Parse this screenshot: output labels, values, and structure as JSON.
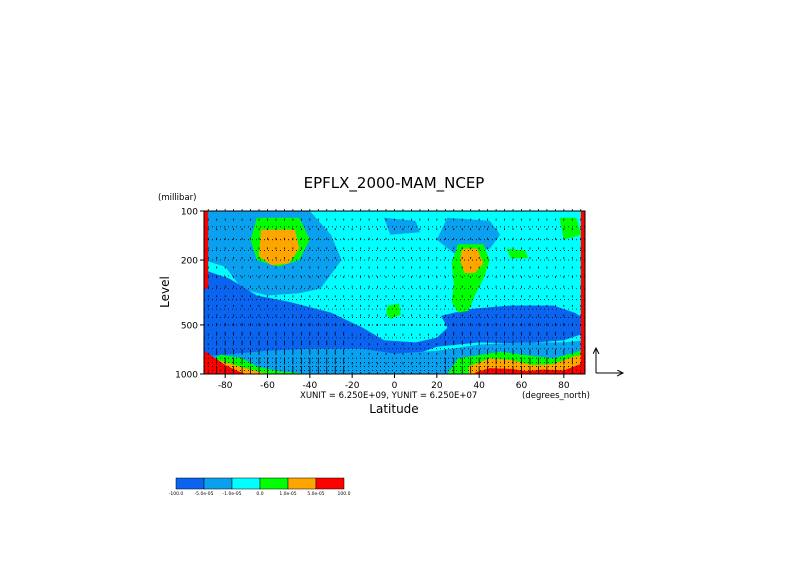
{
  "chart_data": {
    "type": "heatmap",
    "title": "EPFLX_2000-MAM_NCEP",
    "ylabel": "Level",
    "yunit_label": "(millibar)",
    "xlabel": "Latitude",
    "xunit_label": "(degrees_north)",
    "vector_scale_text": "XUNIT = 6.250E+09, YUNIT = 6.250E+07",
    "x_ticks": [
      -80,
      -60,
      -40,
      -20,
      0,
      20,
      40,
      60,
      80
    ],
    "y_ticks": [
      100,
      200,
      500,
      1000
    ],
    "xlim": [
      -90,
      90
    ],
    "ylim": [
      1000,
      100
    ],
    "y_scale": "log",
    "grid": true,
    "colorbar": {
      "labels": [
        "-100.0",
        "-5.0e-05",
        "-1.0e-05",
        "0.0",
        "1.0e-05",
        "5.0e-05",
        "100.0"
      ],
      "colors": [
        "#0a64f0",
        "#0aa0f0",
        "#00ffff",
        "#00ff00",
        "#ffa500",
        "#ff0000"
      ]
    },
    "colors": {
      "deep_blue": "#0a64f0",
      "mid_blue": "#0aa0f0",
      "cyan": "#00ffff",
      "green": "#00ff00",
      "orange": "#ffa500",
      "red": "#ff0000",
      "background": "#00ffff"
    },
    "regions": [
      {
        "level": "mid_blue",
        "points": [
          [
            -90,
            100
          ],
          [
            -40,
            100
          ],
          [
            -30,
            140
          ],
          [
            -25,
            200
          ],
          [
            -35,
            300
          ],
          [
            -45,
            320
          ],
          [
            -60,
            330
          ],
          [
            -72,
            300
          ],
          [
            -80,
            220
          ],
          [
            -90,
            200
          ]
        ]
      },
      {
        "level": "deep_blue",
        "points": [
          [
            -90,
            230
          ],
          [
            -78,
            260
          ],
          [
            -65,
            330
          ],
          [
            -50,
            360
          ],
          [
            -30,
            420
          ],
          [
            -15,
            520
          ],
          [
            -5,
            620
          ],
          [
            10,
            640
          ],
          [
            20,
            600
          ],
          [
            25,
            520
          ],
          [
            22,
            440
          ],
          [
            35,
            400
          ],
          [
            55,
            380
          ],
          [
            75,
            380
          ],
          [
            85,
            420
          ],
          [
            90,
            460
          ],
          [
            90,
            560
          ],
          [
            80,
            620
          ],
          [
            60,
            650
          ],
          [
            40,
            640
          ],
          [
            20,
            680
          ],
          [
            5,
            800
          ],
          [
            -10,
            860
          ],
          [
            -30,
            880
          ],
          [
            -55,
            900
          ],
          [
            -75,
            880
          ],
          [
            -85,
            820
          ],
          [
            -90,
            780
          ]
        ]
      },
      {
        "level": "mid_blue",
        "points": [
          [
            -90,
            780
          ],
          [
            -80,
            760
          ],
          [
            -60,
            720
          ],
          [
            -40,
            700
          ],
          [
            -15,
            700
          ],
          [
            0,
            750
          ],
          [
            20,
            720
          ],
          [
            40,
            660
          ],
          [
            60,
            640
          ],
          [
            80,
            640
          ],
          [
            90,
            620
          ],
          [
            90,
            1000
          ],
          [
            -90,
            1000
          ]
        ]
      },
      {
        "level": "mid_blue",
        "points": [
          [
            -85,
            100
          ],
          [
            -75,
            130
          ],
          [
            -70,
            160
          ],
          [
            -80,
            180
          ],
          [
            -90,
            170
          ]
        ]
      },
      {
        "level": "mid_blue",
        "points": [
          [
            25,
            110
          ],
          [
            45,
            115
          ],
          [
            50,
            140
          ],
          [
            45,
            170
          ],
          [
            30,
            190
          ],
          [
            20,
            150
          ]
        ]
      },
      {
        "level": "mid_blue",
        "points": [
          [
            -5,
            110
          ],
          [
            10,
            115
          ],
          [
            12,
            135
          ],
          [
            -2,
            140
          ]
        ]
      },
      {
        "level": "green",
        "points": [
          [
            -65,
            110
          ],
          [
            -45,
            110
          ],
          [
            -40,
            150
          ],
          [
            -45,
            200
          ],
          [
            -55,
            220
          ],
          [
            -65,
            200
          ],
          [
            -68,
            150
          ]
        ]
      },
      {
        "level": "green",
        "points": [
          [
            30,
            160
          ],
          [
            42,
            160
          ],
          [
            45,
            200
          ],
          [
            42,
            260
          ],
          [
            38,
            330
          ],
          [
            35,
            410
          ],
          [
            30,
            420
          ],
          [
            27,
            360
          ],
          [
            28,
            280
          ],
          [
            27,
            210
          ]
        ]
      },
      {
        "level": "green",
        "points": [
          [
            -3,
            380
          ],
          [
            2,
            370
          ],
          [
            3,
            430
          ],
          [
            -2,
            460
          ],
          [
            -4,
            420
          ]
        ]
      },
      {
        "level": "green",
        "points": [
          [
            53,
            170
          ],
          [
            62,
            175
          ],
          [
            63,
            195
          ],
          [
            55,
            195
          ]
        ]
      },
      {
        "level": "green",
        "points": [
          [
            78,
            110
          ],
          [
            86,
            110
          ],
          [
            88,
            140
          ],
          [
            80,
            150
          ]
        ]
      },
      {
        "level": "orange",
        "points": [
          [
            -63,
            130
          ],
          [
            -47,
            130
          ],
          [
            -45,
            170
          ],
          [
            -50,
            210
          ],
          [
            -58,
            215
          ],
          [
            -64,
            190
          ]
        ]
      },
      {
        "level": "orange",
        "points": [
          [
            32,
            170
          ],
          [
            39,
            170
          ],
          [
            42,
            210
          ],
          [
            38,
            240
          ],
          [
            33,
            240
          ],
          [
            31,
            200
          ]
        ]
      },
      {
        "level": "green",
        "points": [
          [
            -82,
            760
          ],
          [
            -72,
            800
          ],
          [
            -65,
            900
          ],
          [
            -55,
            960
          ],
          [
            -40,
            1000
          ],
          [
            -90,
            1000
          ],
          [
            -90,
            880
          ]
        ]
      },
      {
        "level": "orange",
        "points": [
          [
            -87,
            800
          ],
          [
            -78,
            860
          ],
          [
            -68,
            940
          ],
          [
            -60,
            1000
          ],
          [
            -90,
            1000
          ]
        ]
      },
      {
        "level": "red",
        "points": [
          [
            -90,
            720
          ],
          [
            -86,
            780
          ],
          [
            -80,
            880
          ],
          [
            -74,
            960
          ],
          [
            -70,
            1000
          ],
          [
            -90,
            1000
          ]
        ]
      },
      {
        "level": "green",
        "points": [
          [
            30,
            800
          ],
          [
            50,
            730
          ],
          [
            60,
            760
          ],
          [
            75,
            800
          ],
          [
            85,
            740
          ],
          [
            90,
            700
          ],
          [
            90,
            1000
          ],
          [
            25,
            1000
          ]
        ]
      },
      {
        "level": "orange",
        "points": [
          [
            35,
            900
          ],
          [
            45,
            800
          ],
          [
            55,
            820
          ],
          [
            65,
            880
          ],
          [
            75,
            870
          ],
          [
            85,
            780
          ],
          [
            90,
            760
          ],
          [
            90,
            1000
          ],
          [
            35,
            1000
          ]
        ]
      },
      {
        "level": "red",
        "points": [
          [
            38,
            980
          ],
          [
            45,
            920
          ],
          [
            55,
            930
          ],
          [
            62,
            960
          ],
          [
            70,
            940
          ],
          [
            80,
            950
          ],
          [
            90,
            850
          ],
          [
            90,
            1000
          ],
          [
            38,
            1000
          ]
        ]
      },
      {
        "level": "red",
        "points": [
          [
            -90,
            100
          ],
          [
            -88,
            100
          ],
          [
            -88,
            300
          ],
          [
            -90,
            300
          ]
        ]
      },
      {
        "level": "red",
        "points": [
          [
            88,
            100
          ],
          [
            90,
            100
          ],
          [
            90,
            1000
          ],
          [
            88,
            1000
          ]
        ]
      }
    ]
  }
}
